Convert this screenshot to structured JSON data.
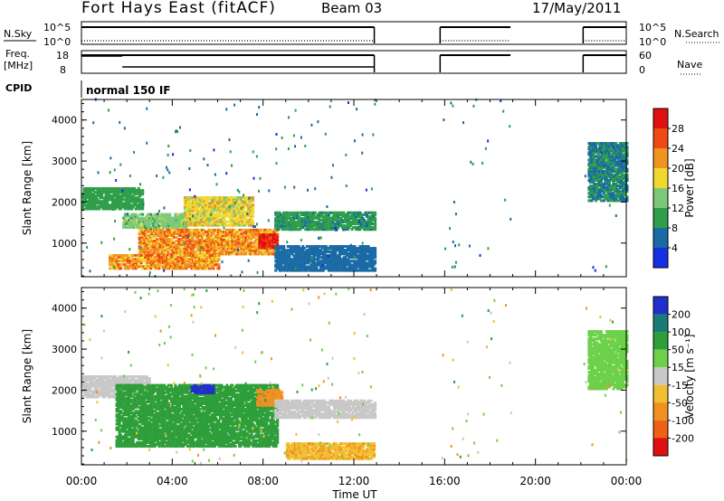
{
  "header": {
    "title": "Fort Hays East (fitACF)",
    "beam": "Beam 03",
    "date": "17/May/2011"
  },
  "small_panels": {
    "nsky": {
      "left_label": "N.Sky",
      "left_top": "10^5",
      "left_bottom": "10^0",
      "right_top": "10^5",
      "right_bottom": "10^0",
      "right_label": "N.Search"
    },
    "freq": {
      "left_label_1": "Freq.",
      "left_label_2": "[MHz]",
      "left_top": "18",
      "left_bottom": "8",
      "right_top": "60",
      "right_bottom": "0",
      "right_label": "Nave"
    },
    "cpid": {
      "label": "CPID",
      "mode": "normal 150 IF"
    }
  },
  "colors": {
    "power": [
      "#1430e0",
      "#1a6aa6",
      "#2e9e4a",
      "#7cc87a",
      "#f0d830",
      "#f09420",
      "#f04a14",
      "#e01010"
    ],
    "velocity": [
      "#2030c8",
      "#1a7a78",
      "#2e9e3a",
      "#6cd04a",
      "#c8c8c8",
      "#f0c030",
      "#f09020",
      "#f06014",
      "#e01010"
    ]
  },
  "chart_data": [
    {
      "type": "heatmap",
      "name": "power",
      "ylabel": "Slant Range [km]",
      "xlabel": "Time UT",
      "x_ticks": [
        "00:00",
        "04:00",
        "08:00",
        "12:00",
        "16:00",
        "20:00",
        "00:00"
      ],
      "x_range_hours": [
        0,
        24
      ],
      "y_ticks": [
        1000,
        2000,
        3000,
        4000
      ],
      "y_range_km": [
        180,
        4500
      ],
      "colorbar": {
        "label": "Power [dB]",
        "ticks": [
          4,
          8,
          12,
          16,
          20,
          24,
          28
        ],
        "range": [
          0,
          32
        ]
      },
      "echo_regions": [
        {
          "t0": 0.0,
          "t1": 2.7,
          "r0": 1800,
          "r1": 2300,
          "level": 10
        },
        {
          "t0": 1.8,
          "t1": 4.6,
          "r0": 1350,
          "r1": 1700,
          "level": 14
        },
        {
          "t0": 2.5,
          "t1": 8.6,
          "r0": 700,
          "r1": 1300,
          "level": 22
        },
        {
          "t0": 4.5,
          "t1": 7.5,
          "r0": 1400,
          "r1": 2100,
          "level": 18
        },
        {
          "t0": 7.8,
          "t1": 8.6,
          "r0": 850,
          "r1": 1200,
          "level": 30
        },
        {
          "t0": 1.2,
          "t1": 6.0,
          "r0": 350,
          "r1": 700,
          "level": 22
        },
        {
          "t0": 8.5,
          "t1": 12.9,
          "r0": 1300,
          "r1": 1750,
          "level": 9
        },
        {
          "t0": 8.5,
          "t1": 12.9,
          "r0": 300,
          "r1": 900,
          "level": 6
        },
        {
          "t0": 22.3,
          "t1": 24.0,
          "r0": 2000,
          "r1": 3400,
          "level": 8
        }
      ]
    },
    {
      "type": "heatmap",
      "name": "velocity",
      "ylabel": "Slant Range [km]",
      "xlabel": "Time UT",
      "x_ticks": [
        "00:00",
        "04:00",
        "08:00",
        "12:00",
        "16:00",
        "20:00",
        "00:00"
      ],
      "x_range_hours": [
        0,
        24
      ],
      "y_ticks": [
        1000,
        2000,
        3000,
        4000
      ],
      "y_range_km": [
        180,
        4500
      ],
      "colorbar": {
        "label": "Velocity [m s⁻¹]",
        "ticks": [
          200,
          100,
          50,
          15,
          -15,
          -50,
          -100,
          -200
        ]
      },
      "echo_regions": [
        {
          "t0": 0.0,
          "t1": 3.0,
          "r0": 1800,
          "r1": 2300,
          "level": 0
        },
        {
          "t0": 1.5,
          "t1": 8.6,
          "r0": 600,
          "r1": 2100,
          "level": 40
        },
        {
          "t0": 4.8,
          "t1": 5.8,
          "r0": 1900,
          "r1": 2100,
          "level": 220
        },
        {
          "t0": 7.7,
          "t1": 8.8,
          "r0": 1600,
          "r1": 2000,
          "level": -60
        },
        {
          "t0": 8.5,
          "t1": 12.9,
          "r0": 1300,
          "r1": 1750,
          "level": 0
        },
        {
          "t0": 9.0,
          "t1": 12.9,
          "r0": 300,
          "r1": 700,
          "level": -30
        },
        {
          "t0": 22.3,
          "t1": 24.0,
          "r0": 2000,
          "r1": 3400,
          "level": 5
        }
      ]
    }
  ]
}
